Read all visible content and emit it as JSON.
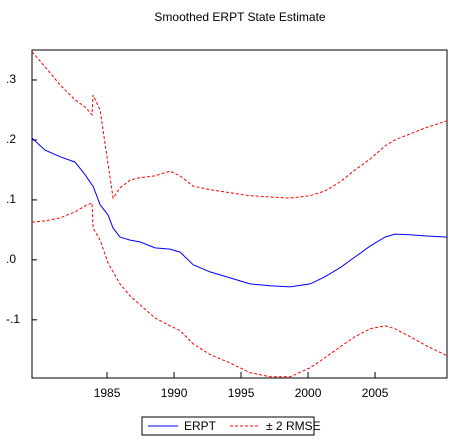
{
  "chart_data": {
    "type": "line",
    "title": "Smoothed ERPT State Estimate",
    "x": [
      1979.4,
      1980.37,
      1981.49,
      1982.61,
      1983.36,
      1983.88,
      1983.96,
      1984.48,
      1985.07,
      1985.45,
      1985.97,
      1986.72,
      1987.46,
      1988.58,
      1989.7,
      1990.45,
      1991.42,
      1992.69,
      1994.18,
      1995.67,
      1997.16,
      1998.66,
      2000.15,
      2001.27,
      2002.39,
      2003.51,
      2004.63,
      2005.75,
      2006.49,
      2007.61,
      2008.73,
      2010.37
    ],
    "series": [
      {
        "name": "ERPT",
        "color": "#0000ff",
        "dashed": false,
        "values": [
          0.203,
          0.183,
          0.172,
          0.163,
          0.142,
          0.125,
          0.123,
          0.092,
          0.075,
          0.053,
          0.038,
          0.033,
          0.03,
          0.02,
          0.018,
          0.013,
          -0.008,
          -0.02,
          -0.03,
          -0.04,
          -0.043,
          -0.045,
          -0.04,
          -0.028,
          -0.013,
          0.005,
          0.023,
          0.038,
          0.043,
          0.042,
          0.04,
          0.038
        ]
      },
      {
        "name": "± 2 RMSE",
        "color": "#ff0000",
        "dashed": true,
        "upper": [
          0.347,
          0.322,
          0.292,
          0.267,
          0.255,
          0.242,
          0.275,
          0.25,
          0.16,
          0.103,
          0.12,
          0.133,
          0.137,
          0.14,
          0.148,
          0.14,
          0.123,
          0.117,
          0.112,
          0.107,
          0.105,
          0.103,
          0.107,
          0.115,
          0.13,
          0.15,
          0.168,
          0.19,
          0.2,
          0.21,
          0.22,
          0.232
        ],
        "lower": [
          0.063,
          0.065,
          0.07,
          0.08,
          0.09,
          0.095,
          0.053,
          0.033,
          -0.005,
          -0.02,
          -0.04,
          -0.06,
          -0.075,
          -0.097,
          -0.11,
          -0.118,
          -0.14,
          -0.158,
          -0.172,
          -0.188,
          -0.195,
          -0.195,
          -0.18,
          -0.163,
          -0.145,
          -0.128,
          -0.115,
          -0.11,
          -0.115,
          -0.128,
          -0.142,
          -0.16
        ]
      }
    ],
    "xlim": [
      1979.4,
      2010.37
    ],
    "xticks": [
      1985,
      1990,
      1995,
      2000,
      2005
    ],
    "ylim": [
      -0.197,
      0.35
    ],
    "yticks": [
      {
        "value": 0.3,
        "label": ".3"
      },
      {
        "value": 0.2,
        "label": ".2"
      },
      {
        "value": 0.1,
        "label": ".1"
      },
      {
        "value": 0,
        "label": ".0"
      },
      {
        "value": -0.1,
        "label": "-.1"
      }
    ],
    "grid": false,
    "legend": "bottom"
  }
}
